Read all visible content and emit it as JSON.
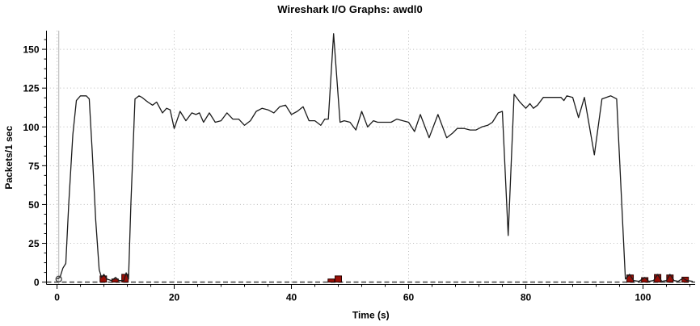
{
  "header": {
    "title": "Wireshark I/O Graphs: awdl0"
  },
  "chart_data": {
    "type": "line",
    "title": "Wireshark I/O Graphs: awdl0",
    "xlabel": "Time (s)",
    "ylabel": "Packets/1 sec",
    "x_ticks": [
      0,
      20,
      40,
      60,
      80,
      100
    ],
    "x_minor_step": 4,
    "y_ticks": [
      0,
      25,
      50,
      75,
      100,
      125,
      150
    ],
    "y_minor_step": 6.25,
    "xlim": [
      -1.8,
      108.9
    ],
    "ylim": [
      -1.5,
      162
    ],
    "grid": "dotted",
    "legend": "none",
    "colors": {
      "line": "#1b1b1b",
      "bar_fill": "#9a1008",
      "bar_stroke": "#2a0200",
      "grid": "#bbbbbb",
      "zero_line": "#5a5a5a",
      "tracer": "#b4b4b4",
      "axis": "#000000",
      "text": "#000000"
    },
    "series": [
      {
        "name": "packets-per-sec-line",
        "type": "line",
        "points": [
          [
            0,
            2
          ],
          [
            0.5,
            3
          ],
          [
            1,
            9
          ],
          [
            1.5,
            12
          ],
          [
            2,
            50
          ],
          [
            2.7,
            95
          ],
          [
            3.3,
            117
          ],
          [
            4,
            120
          ],
          [
            5,
            120
          ],
          [
            5.5,
            118
          ],
          [
            6,
            85
          ],
          [
            6.6,
            40
          ],
          [
            7.2,
            8
          ],
          [
            7.6,
            3
          ],
          [
            8,
            5
          ],
          [
            8.5,
            2
          ],
          [
            9.3,
            1
          ],
          [
            10,
            3
          ],
          [
            10.6,
            1
          ],
          [
            11.4,
            1
          ],
          [
            11.8,
            6
          ],
          [
            12.2,
            2
          ],
          [
            12.6,
            50
          ],
          [
            13.3,
            118
          ],
          [
            14,
            120
          ],
          [
            14.5,
            119
          ],
          [
            15.5,
            116
          ],
          [
            16.3,
            114
          ],
          [
            17,
            116
          ],
          [
            18,
            109
          ],
          [
            18.7,
            112
          ],
          [
            19.3,
            111
          ],
          [
            20,
            99
          ],
          [
            21,
            110
          ],
          [
            22,
            104
          ],
          [
            23,
            109
          ],
          [
            23.7,
            108
          ],
          [
            24.3,
            109
          ],
          [
            25,
            103
          ],
          [
            26,
            109
          ],
          [
            27,
            103
          ],
          [
            28,
            104
          ],
          [
            29,
            109
          ],
          [
            30,
            105
          ],
          [
            31,
            105
          ],
          [
            32,
            101
          ],
          [
            33,
            104
          ],
          [
            34,
            110
          ],
          [
            35,
            112
          ],
          [
            36,
            111
          ],
          [
            37,
            109
          ],
          [
            38,
            113
          ],
          [
            39,
            114
          ],
          [
            40,
            108
          ],
          [
            41,
            110
          ],
          [
            42,
            113
          ],
          [
            43,
            104
          ],
          [
            44,
            104
          ],
          [
            45,
            101
          ],
          [
            45.7,
            105
          ],
          [
            46.3,
            105
          ],
          [
            47.2,
            160
          ],
          [
            48.3,
            103
          ],
          [
            49,
            104
          ],
          [
            50,
            103
          ],
          [
            51,
            98
          ],
          [
            52,
            110
          ],
          [
            53,
            100
          ],
          [
            54,
            104
          ],
          [
            54.7,
            103
          ],
          [
            56,
            103
          ],
          [
            57,
            103
          ],
          [
            58,
            105
          ],
          [
            59,
            104
          ],
          [
            60,
            103
          ],
          [
            61,
            97
          ],
          [
            62,
            108
          ],
          [
            63.5,
            93
          ],
          [
            65,
            108
          ],
          [
            66.5,
            93
          ],
          [
            67.5,
            96
          ],
          [
            68.3,
            99
          ],
          [
            69.5,
            99
          ],
          [
            70.5,
            98
          ],
          [
            71.5,
            98
          ],
          [
            72.5,
            100
          ],
          [
            73.5,
            101
          ],
          [
            74.3,
            103
          ],
          [
            75.3,
            109
          ],
          [
            76,
            110
          ],
          [
            77,
            30
          ],
          [
            78,
            121
          ],
          [
            79,
            116
          ],
          [
            80,
            112
          ],
          [
            80.7,
            115
          ],
          [
            81.3,
            112
          ],
          [
            82,
            114
          ],
          [
            83,
            119
          ],
          [
            84,
            119
          ],
          [
            85,
            119
          ],
          [
            86,
            119
          ],
          [
            86.5,
            117
          ],
          [
            87,
            120
          ],
          [
            88,
            119
          ],
          [
            89,
            106
          ],
          [
            90,
            119
          ],
          [
            91.7,
            82
          ],
          [
            93,
            118
          ],
          [
            94.5,
            120
          ],
          [
            95.5,
            118
          ],
          [
            97,
            2
          ],
          [
            97.7,
            5
          ],
          [
            98.4,
            1
          ],
          [
            99.3,
            0.5
          ],
          [
            100.3,
            3
          ],
          [
            101,
            0.5
          ],
          [
            101.8,
            1
          ],
          [
            102.5,
            5
          ],
          [
            103.2,
            0.5
          ],
          [
            104,
            1
          ],
          [
            104.6,
            5
          ],
          [
            105.3,
            1
          ],
          [
            106,
            0.5
          ],
          [
            106.8,
            2.5
          ],
          [
            107.5,
            1
          ],
          [
            108.5,
            0.5
          ]
        ]
      },
      {
        "name": "error-bars",
        "type": "bar",
        "bar_width": 1.1,
        "points": [
          [
            7.9,
            4
          ],
          [
            9.9,
            2
          ],
          [
            11.6,
            5
          ],
          [
            46.8,
            2
          ],
          [
            48,
            4
          ],
          [
            97.8,
            4.6
          ],
          [
            100.3,
            2.9
          ],
          [
            102.5,
            4.9
          ],
          [
            104.6,
            4.6
          ],
          [
            107.2,
            3.2
          ]
        ]
      }
    ],
    "zero_line_y": 0,
    "selected_point": {
      "x": 0.3,
      "y": 2
    }
  }
}
